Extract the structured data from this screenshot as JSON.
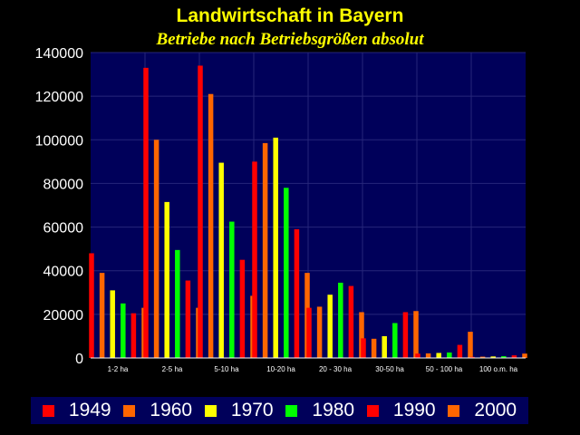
{
  "chart_data": {
    "type": "bar",
    "title": "Landwirtschaft in Bayern",
    "subtitle": "Betriebe nach Betriebsgrößen absolut",
    "xlabel": "",
    "ylabel": "",
    "ylim": [
      0,
      140000
    ],
    "yticks": [
      "0",
      "20000",
      "40000",
      "60000",
      "80000",
      "100000",
      "120000",
      "140000"
    ],
    "grid": true,
    "legend_position": "bottom",
    "categories": [
      "1-2 ha",
      "2-5 ha",
      "5-10 ha",
      "10-20 ha",
      "20 - 30 ha",
      "30-50 ha",
      "50 - 100 ha",
      "100 o.m. ha"
    ],
    "series": [
      {
        "name": "1949",
        "color": "#ff0000",
        "values": [
          48000,
          133000,
          134000,
          90000,
          23000,
          9000,
          2000,
          500
        ]
      },
      {
        "name": "1960",
        "color": "#ff6600",
        "values": [
          39000,
          100000,
          121000,
          98500,
          23500,
          8800,
          2100,
          600
        ]
      },
      {
        "name": "1970",
        "color": "#ffff00",
        "values": [
          31000,
          71500,
          89500,
          101000,
          29000,
          10000,
          2300,
          700
        ]
      },
      {
        "name": "1980",
        "color": "#00ff00",
        "values": [
          25000,
          49500,
          62500,
          78000,
          34500,
          16000,
          2500,
          800
        ]
      },
      {
        "name": "1990",
        "color": "#ff0000",
        "values": [
          20500,
          35500,
          45000,
          59000,
          33000,
          21000,
          6000,
          1200
        ]
      },
      {
        "name": "2000",
        "color": "#ff6600",
        "values": [
          23000,
          23000,
          28500,
          39000,
          21000,
          21500,
          12000,
          2000
        ]
      }
    ]
  }
}
